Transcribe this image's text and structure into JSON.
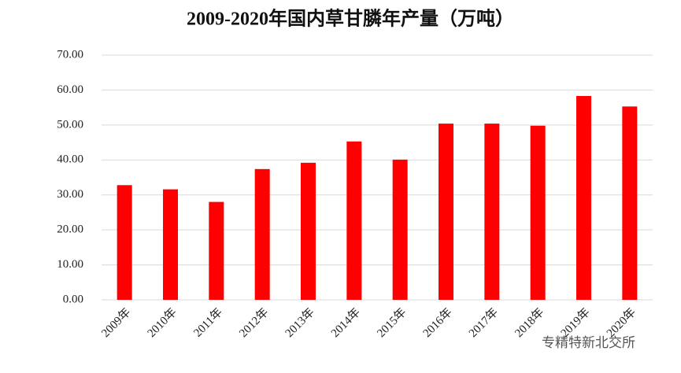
{
  "chart_data": {
    "type": "bar",
    "title": "2009-2020年国内草甘膦年产量（万吨）",
    "categories": [
      "2009年",
      "2010年",
      "2011年",
      "2012年",
      "2013年",
      "2014年",
      "2015年",
      "2016年",
      "2017年",
      "2018年",
      "2019年",
      "2020年"
    ],
    "values": [
      32.8,
      31.6,
      28.0,
      37.4,
      39.2,
      45.3,
      40.1,
      50.4,
      50.4,
      49.8,
      58.3,
      55.3
    ],
    "color": "#ff0000",
    "ylim": [
      0,
      70
    ],
    "yticks": [
      {
        "value": 0,
        "label": "0.00"
      },
      {
        "value": 10,
        "label": "10.00"
      },
      {
        "value": 20,
        "label": "20.00"
      },
      {
        "value": 30,
        "label": "30.00"
      },
      {
        "value": 40,
        "label": "40.00"
      },
      {
        "value": 50,
        "label": "50.00"
      },
      {
        "value": 60,
        "label": "60.00"
      },
      {
        "value": 70,
        "label": "70.00"
      }
    ],
    "grid": true,
    "watermark": "专精特新北交所"
  }
}
